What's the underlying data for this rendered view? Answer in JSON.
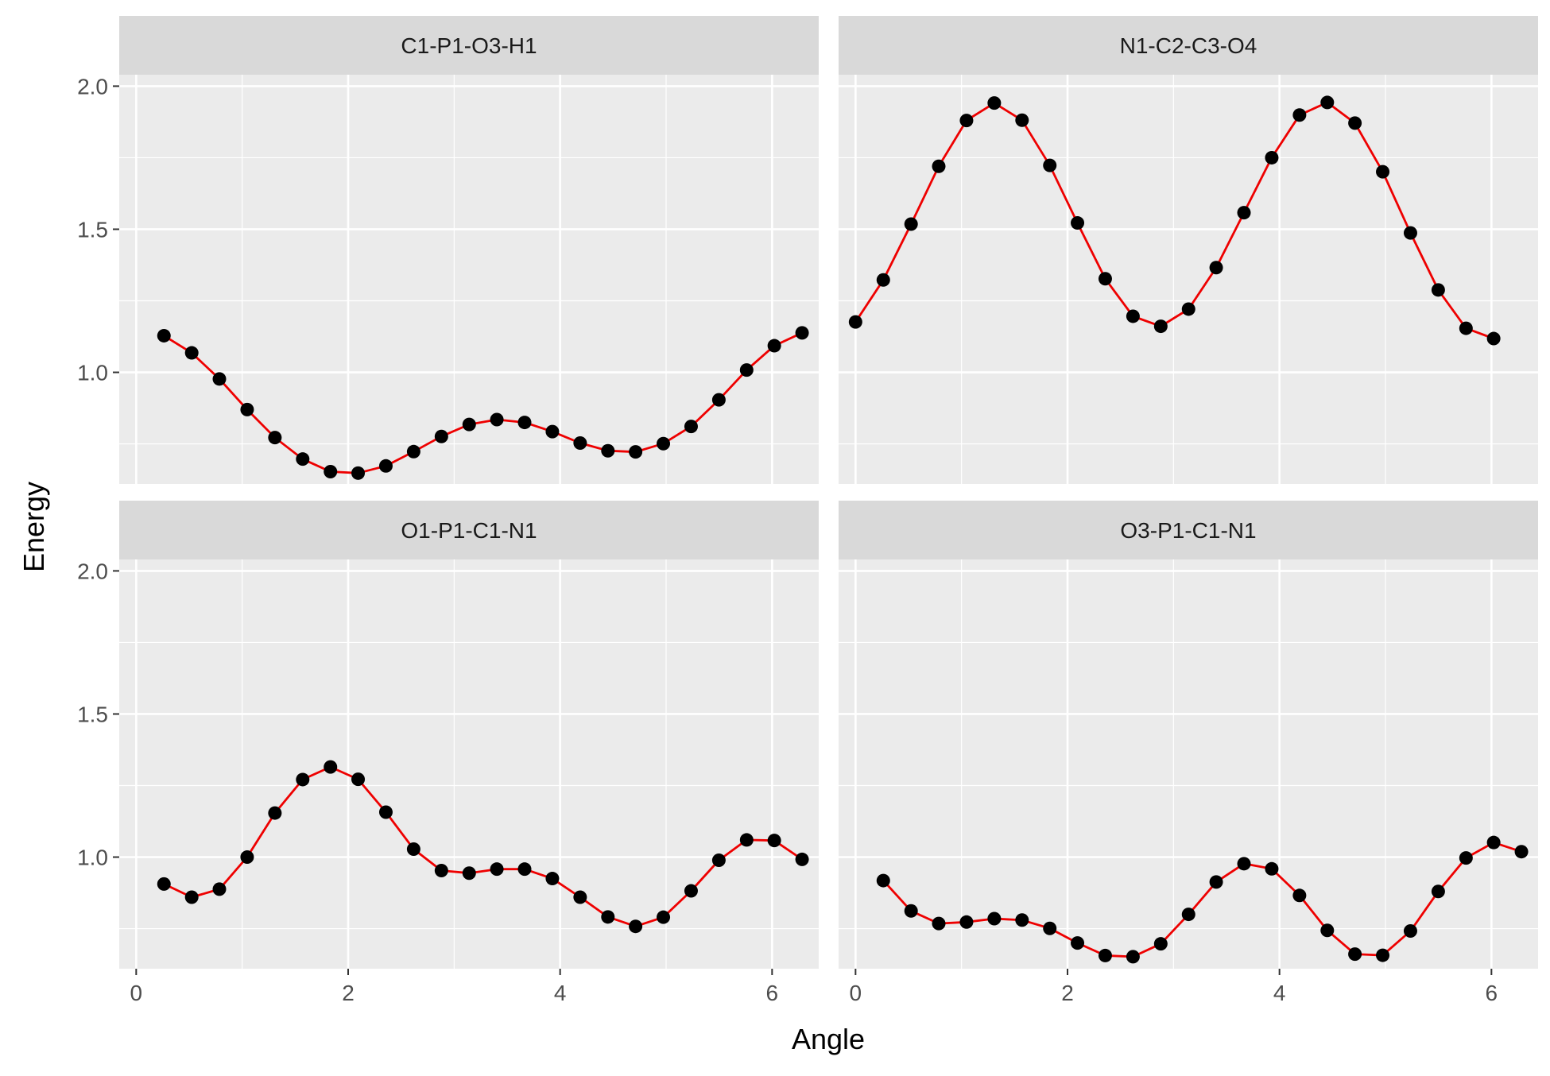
{
  "chart_data": {
    "type": "line",
    "xlabel": "Angle",
    "ylabel": "Energy",
    "xlim": [
      -0.16,
      6.44
    ],
    "ylim": [
      0.61,
      2.04
    ],
    "x_ticks": [
      0,
      2,
      4,
      6
    ],
    "y_ticks": [
      1.0,
      1.5,
      2.0
    ],
    "x_tick_labels": [
      "0",
      "2",
      "4",
      "6"
    ],
    "y_tick_labels": [
      "1.0",
      "1.5",
      "2.0"
    ],
    "grid": true,
    "legend": "none",
    "line_color": "#ee0000",
    "point_color": "#000000",
    "panel_background": "#ebebeb",
    "strip_background": "#d9d9d9",
    "panels": [
      {
        "title": "C1-P1-O3-H1",
        "x": [
          0.262,
          0.524,
          0.785,
          1.047,
          1.309,
          1.571,
          1.833,
          2.094,
          2.356,
          2.618,
          2.88,
          3.142,
          3.403,
          3.665,
          3.927,
          4.189,
          4.451,
          4.712,
          4.974,
          5.236,
          5.498,
          5.76,
          6.021,
          6.283
        ],
        "y": [
          1.128,
          1.068,
          0.977,
          0.87,
          0.772,
          0.697,
          0.653,
          0.648,
          0.673,
          0.723,
          0.776,
          0.818,
          0.835,
          0.825,
          0.793,
          0.753,
          0.726,
          0.722,
          0.751,
          0.811,
          0.904,
          1.008,
          1.093,
          1.138
        ]
      },
      {
        "title": "N1-C2-C3-O4",
        "x": [
          0.0,
          0.262,
          0.524,
          0.785,
          1.047,
          1.309,
          1.571,
          1.833,
          2.094,
          2.356,
          2.618,
          2.88,
          3.142,
          3.403,
          3.665,
          3.927,
          4.189,
          4.451,
          4.712,
          4.974,
          5.236,
          5.498,
          5.76,
          6.021
        ],
        "y": [
          1.176,
          1.323,
          1.518,
          1.72,
          1.88,
          1.941,
          1.881,
          1.723,
          1.522,
          1.327,
          1.196,
          1.161,
          1.221,
          1.366,
          1.558,
          1.75,
          1.899,
          1.943,
          1.871,
          1.701,
          1.487,
          1.288,
          1.154,
          1.118
        ]
      },
      {
        "title": "O1-P1-C1-N1",
        "x": [
          0.262,
          0.524,
          0.785,
          1.047,
          1.309,
          1.571,
          1.833,
          2.094,
          2.356,
          2.618,
          2.88,
          3.142,
          3.403,
          3.665,
          3.927,
          4.189,
          4.451,
          4.712,
          4.974,
          5.236,
          5.498,
          5.76,
          6.021,
          6.283
        ],
        "y": [
          0.906,
          0.86,
          0.888,
          1.0,
          1.154,
          1.271,
          1.315,
          1.272,
          1.157,
          1.028,
          0.953,
          0.944,
          0.958,
          0.958,
          0.925,
          0.86,
          0.791,
          0.758,
          0.79,
          0.882,
          0.989,
          1.06,
          1.058,
          0.992
        ]
      },
      {
        "title": "O3-P1-C1-N1",
        "x": [
          0.262,
          0.524,
          0.785,
          1.047,
          1.309,
          1.571,
          1.833,
          2.094,
          2.356,
          2.618,
          2.88,
          3.142,
          3.403,
          3.665,
          3.927,
          4.189,
          4.451,
          4.712,
          4.974,
          5.236,
          5.498,
          5.76,
          6.021,
          6.283
        ],
        "y": [
          0.918,
          0.812,
          0.768,
          0.773,
          0.785,
          0.78,
          0.751,
          0.7,
          0.656,
          0.652,
          0.697,
          0.8,
          0.913,
          0.977,
          0.959,
          0.866,
          0.744,
          0.661,
          0.657,
          0.742,
          0.88,
          0.997,
          1.051,
          1.019
        ]
      }
    ]
  }
}
